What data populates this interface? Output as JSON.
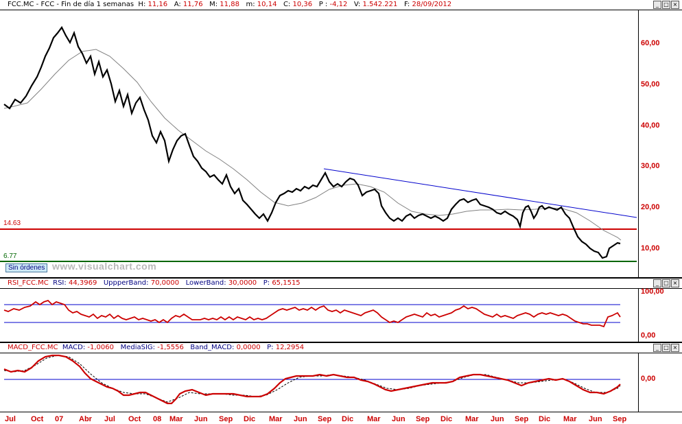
{
  "main": {
    "header": {
      "symbol": "FCC.MC - FCC - Fin de día 1 semanas",
      "h_label": "H:",
      "h_value": "11,16",
      "a_label": "A:",
      "a_value": "11,76",
      "m_label": "M:",
      "m_value": "11,88",
      "m2_label": "m:",
      "m2_value": "10,14",
      "c_label": "C:",
      "c_value": "10,36",
      "p_label": "P :",
      "p_value": "-4,12",
      "v_label": "V:",
      "v_value": "1.542.221",
      "f_label": "F:",
      "f_value": "28/09/2012"
    },
    "y_ticks": [
      "60,00",
      "50,00",
      "40,00",
      "30,00",
      "20,00",
      "10,00"
    ],
    "level_red": "14.63",
    "level_green": "6.77",
    "sin_ordenes": "Sin órdenes",
    "watermark": "www.visualchart.com",
    "colors": {
      "price": "#000000",
      "ma": "#808080",
      "trend": "#0000cc",
      "support_red": "#cc0000",
      "support_green": "#006600"
    }
  },
  "rsi": {
    "header": {
      "name": "RSI_FCC.MC",
      "rsi_label": "RSI:",
      "rsi_value": "44,3969",
      "upper_label": "UppperBand:",
      "upper_value": "70,0000",
      "lower_label": "LowerBand:",
      "lower_value": "30,0000",
      "p_label": "P:",
      "p_value": "65,1515"
    },
    "y_ticks": [
      "100,00",
      "0,00"
    ]
  },
  "macd": {
    "header": {
      "name": "MACD_FCC.MC",
      "macd_label": "MACD:",
      "macd_value": "-1,0060",
      "sig_label": "MediaSIG:",
      "sig_value": "-1,5556",
      "band_label": "Band_MACD:",
      "band_value": "0,0000",
      "p_label": "P:",
      "p_value": "12,2954"
    },
    "y_ticks": [
      "0,00"
    ]
  },
  "x_axis": [
    "Jul",
    "Oct",
    "07",
    "Abr",
    "Jul",
    "Oct",
    "08",
    "Mar",
    "Jun",
    "Sep",
    "Dic",
    "Mar",
    "Jun",
    "Sep",
    "Dic",
    "Mar",
    "Jun",
    "Sep",
    "Dic",
    "Mar",
    "Jun",
    "Sep",
    "Dic",
    "Mar",
    "Jun",
    "Sep"
  ],
  "window_buttons": [
    "_",
    "□",
    "×"
  ]
}
